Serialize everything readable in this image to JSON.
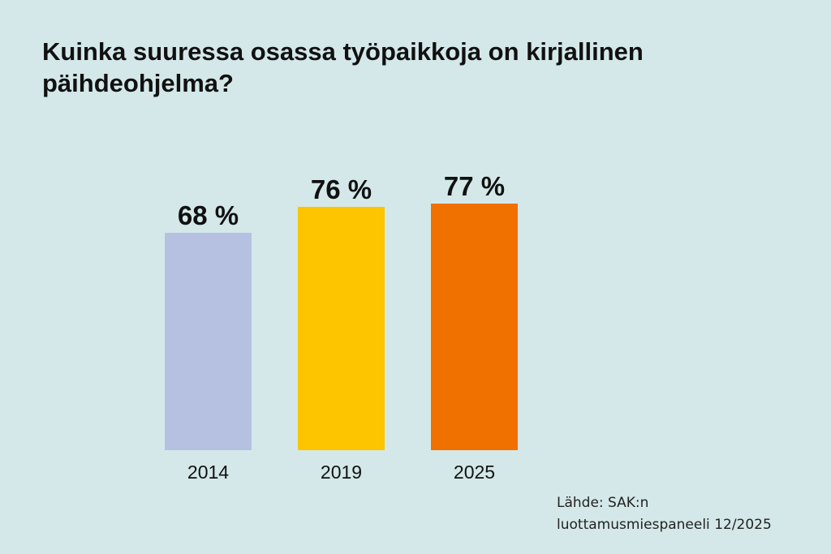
{
  "title": "Kuinka suuressa osassa työpaikkoja on kirjallinen päihdeohjelma?",
  "chart_data": {
    "type": "bar",
    "categories": [
      "2014",
      "2019",
      "2025"
    ],
    "values": [
      68,
      76,
      77
    ],
    "value_labels": [
      "68 %",
      "76 %",
      "77 %"
    ],
    "colors": [
      "#b6c1e1",
      "#fdc400",
      "#f07000"
    ],
    "title": "Kuinka suuressa osassa työpaikkoja on kirjallinen päihdeohjelma?",
    "xlabel": "",
    "ylabel": "",
    "ylim": [
      0,
      100
    ],
    "grid": false,
    "legend": "none"
  },
  "source": {
    "line1": "Lähde: SAK:n",
    "line2": "luottamusmiespaneeli 12/2025"
  }
}
